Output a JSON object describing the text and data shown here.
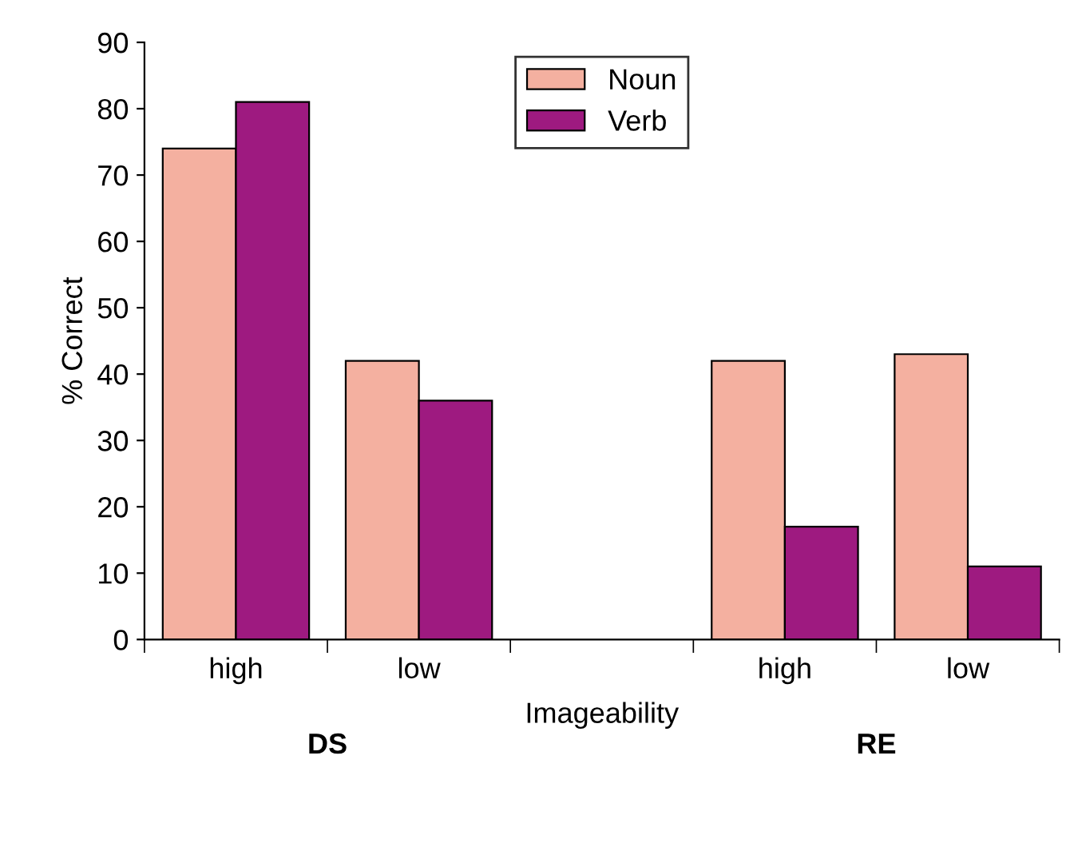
{
  "chart_data": {
    "type": "bar",
    "ylabel": "% Correct",
    "xlabel": "Imageability",
    "categories": [
      "high",
      "low",
      null,
      "high",
      "low"
    ],
    "series": [
      {
        "name": "Noun",
        "color": "#f4b0a0",
        "values": [
          74,
          42,
          null,
          42,
          43
        ]
      },
      {
        "name": "Verb",
        "color": "#9e1a80",
        "values": [
          81,
          36,
          null,
          17,
          11
        ]
      }
    ],
    "ylim": [
      0,
      90
    ],
    "yticks": [
      0,
      10,
      20,
      30,
      40,
      50,
      60,
      70,
      80,
      90
    ],
    "annotations": [
      "DS",
      "RE"
    ],
    "grid": false,
    "legend": "top"
  }
}
